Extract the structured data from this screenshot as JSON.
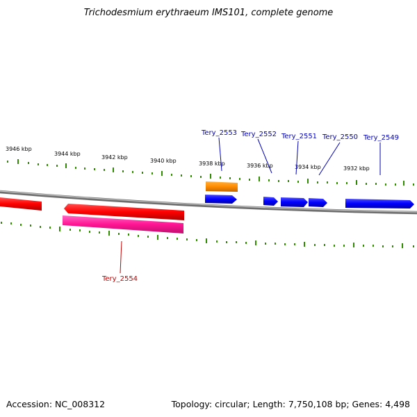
{
  "title": "Trichodesmium erythraeum IMS101, complete genome",
  "footer": {
    "accession": "Accession: NC_008312",
    "summary": "Topology: circular; Length: 7,750,108 bp; Genes: 4,498"
  },
  "kbp_labels": [
    "3946 kbp",
    "3944 kbp",
    "3942 kbp",
    "3940 kbp",
    "3938 kbp",
    "3936 kbp",
    "3934 kbp",
    "3932 kbp"
  ],
  "gene_labels": {
    "tery_2553": "Tery_2553",
    "tery_2552": "Tery_2552",
    "tery_2551": "Tery_2551",
    "tery_2550": "Tery_2550",
    "tery_2549": "Tery_2549",
    "tery_2554": "Tery_2554"
  },
  "colors": {
    "forward_gene": "#0000ff",
    "reverse_gene": "#ff0000",
    "rna_gene": "#ff8c00",
    "cds_feature": "#ff1493",
    "tick": "#2e8b00",
    "backbone": "#808080",
    "label_blue": "#0000b4",
    "label_red": "#c00000"
  }
}
